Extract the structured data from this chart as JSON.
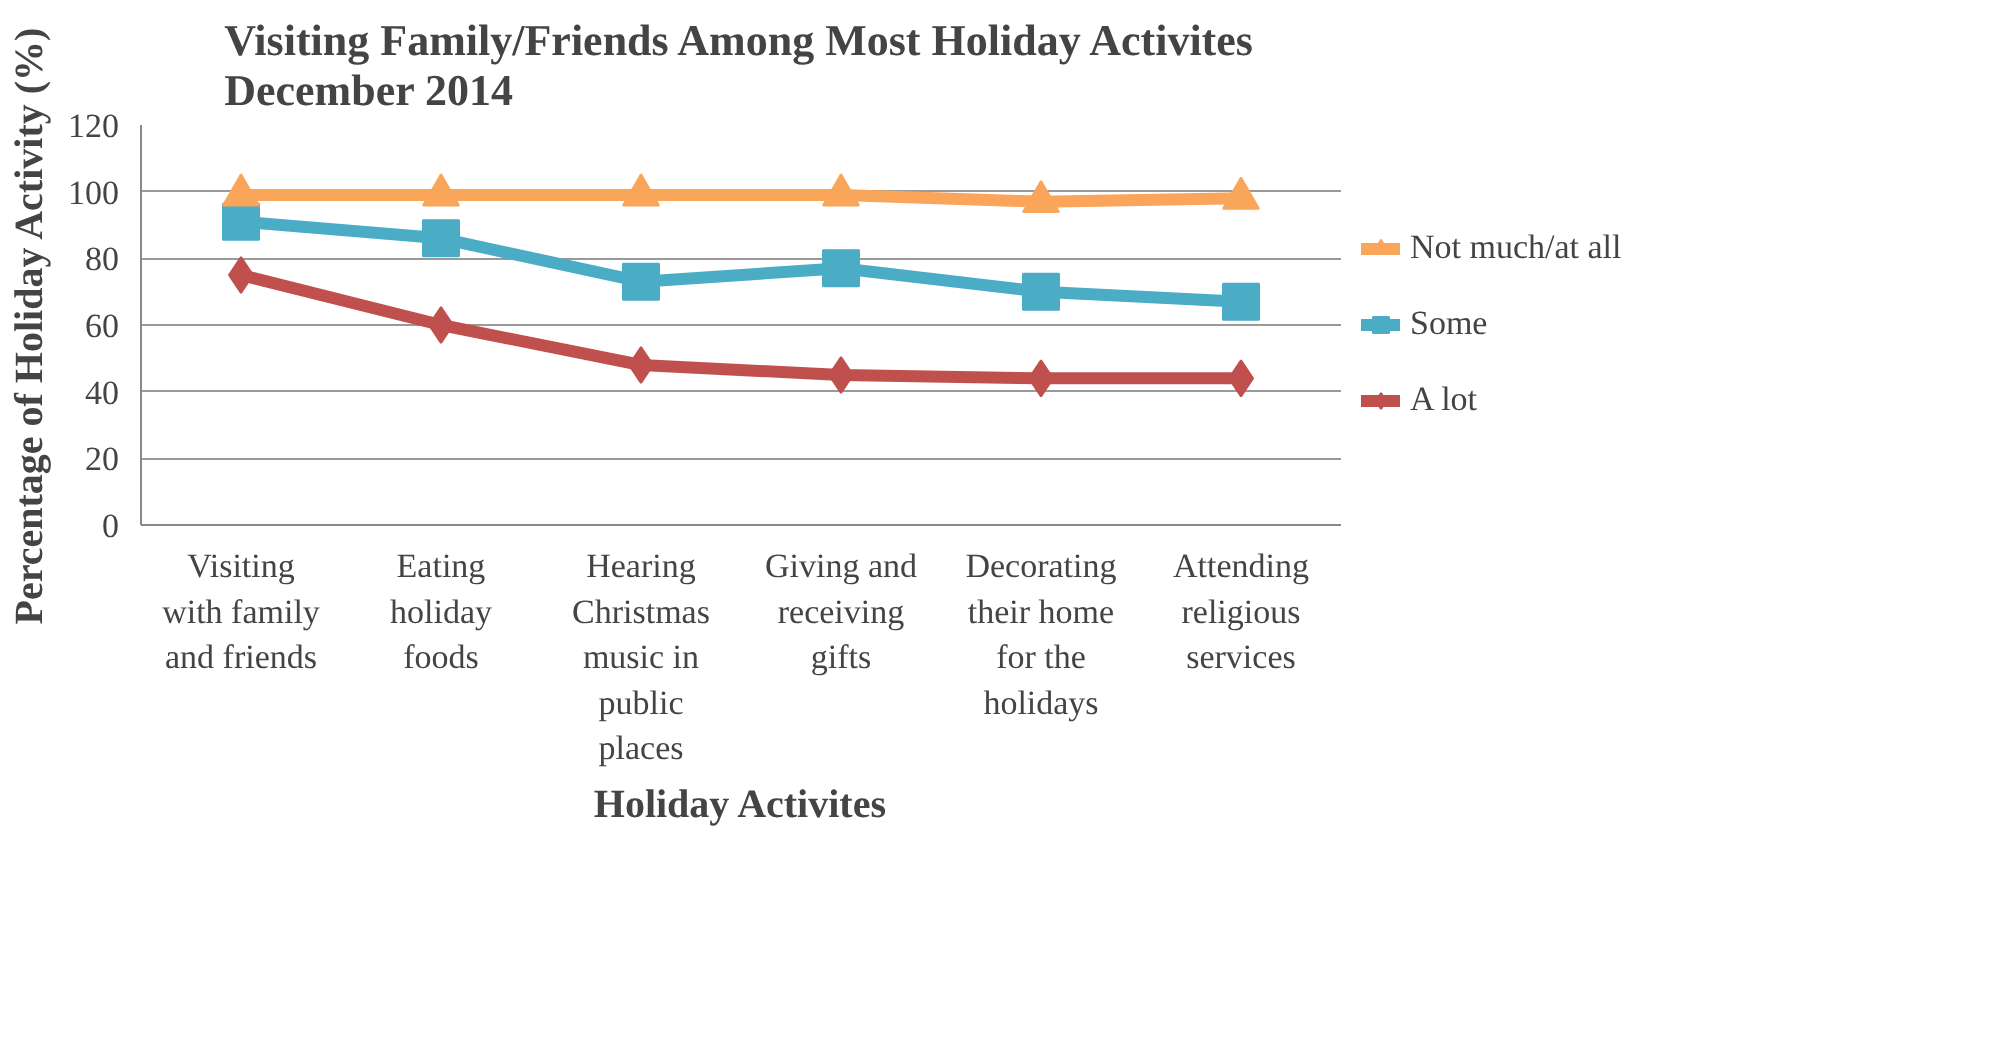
{
  "chart_data": {
    "type": "line",
    "title": "Visiting Family/Friends Among Most Holiday Activites\nDecember 2014",
    "xlabel": "Holiday Activites",
    "ylabel": "Percentage of Holiday Activity (%)",
    "categories": [
      "Visiting\nwith family\nand friends",
      "Eating\nholiday\nfoods",
      "Hearing\nChristmas\nmusic in\npublic\nplaces",
      "Giving and\nreceiving\ngifts",
      "Decorating\ntheir home\nfor the\nholidays",
      "Attending\nreligious\nservices"
    ],
    "series": [
      {
        "name": "Not much/at all",
        "color": "#f9a55a",
        "marker": "triangle",
        "values": [
          99,
          99,
          99,
          99,
          97,
          98
        ]
      },
      {
        "name": "Some",
        "color": "#4bacc6",
        "marker": "square",
        "values": [
          91,
          86,
          73,
          77,
          70,
          67
        ]
      },
      {
        "name": "A lot",
        "color": "#c0504d",
        "marker": "diamond",
        "values": [
          75,
          60,
          48,
          45,
          44,
          44
        ]
      }
    ],
    "ylim": [
      0,
      120
    ],
    "yticks": [
      0,
      20,
      40,
      60,
      80,
      100,
      120
    ],
    "grid": "y",
    "legend": "right",
    "line_style": "solid"
  }
}
